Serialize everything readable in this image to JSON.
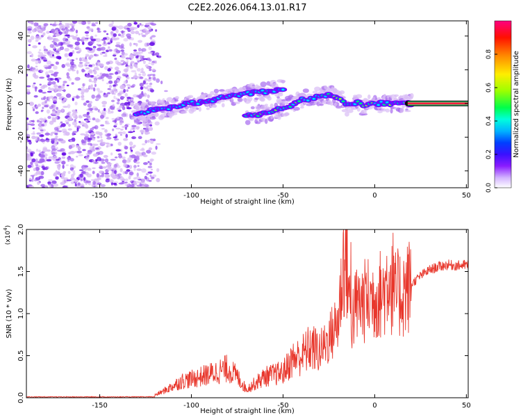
{
  "title": "C2E2.2026.064.13.01.R17",
  "colors": {
    "snr_line": "#e8372c",
    "tail_line": "#0a0a0a",
    "tail_core": "#ff1e40",
    "cloud_weak": "#d9bcf5",
    "cloud_mid": "#a66af0",
    "cloud_strong": "#6a10e8",
    "colormap": [
      "#ffffff",
      "#c9a0ff",
      "#7a00ff",
      "#2a1aff",
      "#0077ff",
      "#00dcff",
      "#00ff66",
      "#b6ff00",
      "#ffea00",
      "#ff7a00",
      "#ff0000",
      "#ff007a"
    ]
  },
  "chart_data": [
    {
      "type": "scatter",
      "name": "spectrogram",
      "title": "C2E2.2026.064.13.01.R17",
      "xlabel": "Height of straight line (km)",
      "ylabel": "Frequency (Hz)",
      "xlim": [
        -190,
        51
      ],
      "ylim": [
        -50,
        49
      ],
      "xticks": [
        -150,
        -100,
        -50,
        0,
        50
      ],
      "yticks": [
        -40,
        -20,
        0,
        20,
        40
      ],
      "series": [
        {
          "name": "noise cloud (scattered, low amplitude)",
          "x_range": [
            -190,
            -120
          ],
          "y_range": [
            -50,
            49
          ],
          "amplitude": 0.1
        },
        {
          "name": "upper rising trace",
          "x": [
            -130,
            -120,
            -110,
            -100,
            -90,
            -80,
            -70,
            -60,
            -50
          ],
          "y": [
            -6,
            -4,
            -2,
            0,
            2,
            4,
            6,
            7,
            9
          ],
          "amplitude": 0.35
        },
        {
          "name": "lower rising trace",
          "x": [
            -70,
            -60,
            -50,
            -40,
            -30,
            -25,
            -20,
            -15,
            -10,
            -5,
            0,
            5,
            10,
            15,
            20
          ],
          "y": [
            -7,
            -6,
            -3,
            2,
            4,
            5,
            4,
            -2,
            1,
            -2,
            0,
            0,
            0,
            0,
            0
          ],
          "amplitude": 0.6
        },
        {
          "name": "steady tone",
          "x": [
            18,
            51
          ],
          "y": [
            0,
            0
          ],
          "amplitude": 0.95
        }
      ],
      "colorbar": {
        "label": "Normalized spectral amplitude",
        "range": [
          0.0,
          1.0
        ],
        "ticks": [
          "0.0",
          "0.2",
          "0.4",
          "0.6",
          "0.8"
        ]
      }
    },
    {
      "type": "line",
      "name": "snr",
      "xlabel": "Height of straight line (km)",
      "ylabel": "SNR (10 * v/v)",
      "y_multiplier": "(x10",
      "y_multiplier_exp": "4",
      "y_multiplier_close": ")",
      "xlim": [
        -190,
        51
      ],
      "ylim": [
        0,
        2.0
      ],
      "xticks": [
        -150,
        -100,
        -50,
        0,
        50
      ],
      "yticks": [
        "0.0",
        "0.5",
        "1.0",
        "1.5",
        "2.0"
      ],
      "envelope": {
        "x": [
          -190,
          -130,
          -120,
          -115,
          -105,
          -100,
          -90,
          -80,
          -75,
          -70,
          -60,
          -50,
          -45,
          -40,
          -35,
          -30,
          -25,
          -20,
          -17,
          -15,
          -13,
          -10,
          -5,
          0,
          5,
          8,
          10,
          15,
          20,
          25,
          30,
          35,
          40,
          45,
          51
        ],
        "y": [
          0.005,
          0.01,
          0.03,
          0.08,
          0.2,
          0.22,
          0.28,
          0.35,
          0.25,
          0.1,
          0.25,
          0.3,
          0.45,
          0.5,
          0.6,
          0.55,
          0.7,
          0.9,
          1.6,
          1.6,
          0.9,
          1.1,
          1.15,
          1.2,
          1.25,
          1.5,
          1.2,
          1.25,
          1.35,
          1.45,
          1.52,
          1.56,
          1.58,
          1.57,
          1.58
        ]
      },
      "spikes": [
        {
          "x": -17,
          "y": 2.0
        },
        {
          "x": -13,
          "y": 1.85
        },
        {
          "x": -10,
          "y": 1.2
        },
        {
          "x": 10,
          "y": 1.96
        },
        {
          "x": -5,
          "y": 1.4
        }
      ]
    }
  ]
}
